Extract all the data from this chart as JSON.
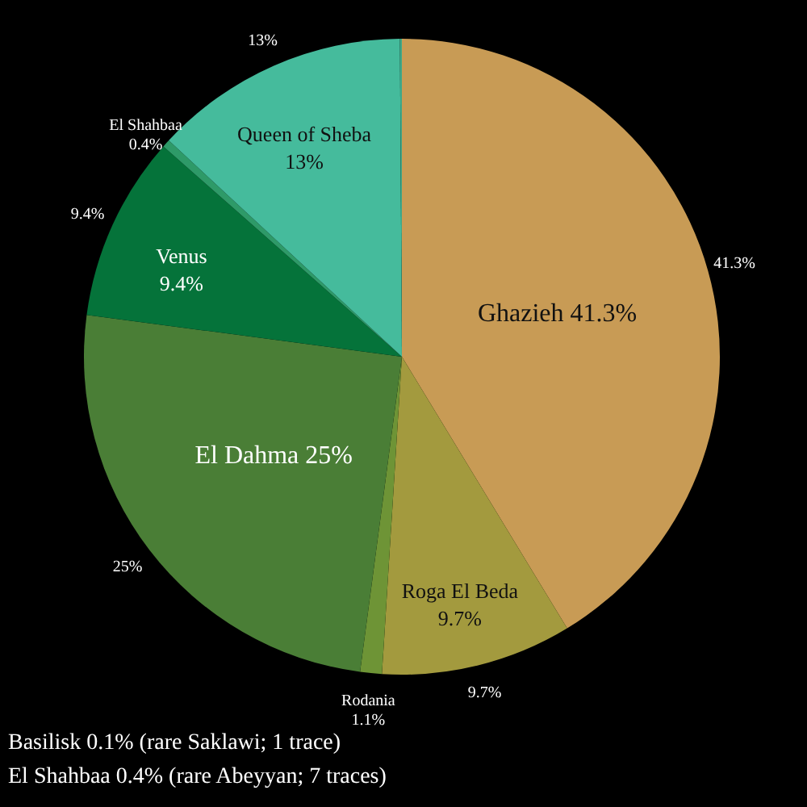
{
  "chart_data": {
    "type": "pie",
    "categories": [
      "Ghazieh",
      "Roga El Beda",
      "Rodania",
      "El Dahma",
      "Venus",
      "El Shahbaa",
      "Queen of Sheba",
      null
    ],
    "values": [
      41.3,
      9.7,
      1.1,
      25,
      9.4,
      0.4,
      13,
      0.1
    ],
    "colors": [
      "#c89b55",
      "#a39a3e",
      "#6e9436",
      "#4a7e36",
      "#05733a",
      "#2e9a68",
      "#45bb9c",
      "#3fa888"
    ],
    "value_labels": [
      "41.3%",
      "9.7%",
      "1.1%",
      "25%",
      "9.4%",
      "0.4%",
      "13%",
      null
    ],
    "annotations": [
      "Basilisk 0.1% (rare Saklawi; 1 trace)",
      "El Shahbaa 0.4% (rare Abeyyan; 7 traces)"
    ]
  }
}
